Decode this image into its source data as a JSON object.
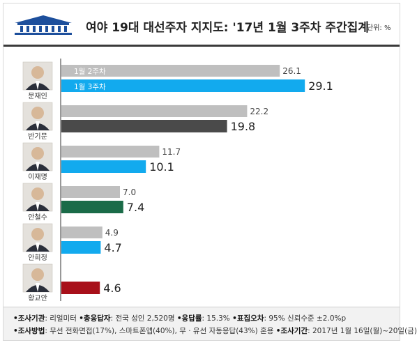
{
  "header": {
    "title": "여야 19대 대선주자 지지도: '17년 1월 3주차 주간집계",
    "unit": "단위: %"
  },
  "colors": {
    "prev_bar": "#bfbfbf",
    "axis": "#555555"
  },
  "chart_data": {
    "type": "bar",
    "orientation": "horizontal",
    "series": [
      {
        "name": "1월 2주차",
        "values": [
          26.1,
          22.2,
          11.7,
          7.0,
          4.9,
          null
        ]
      },
      {
        "name": "1월 3주차",
        "values": [
          29.1,
          19.8,
          10.1,
          7.4,
          4.7,
          4.6
        ]
      }
    ],
    "legend_labels": [
      "1월 2주차",
      "1월 3주차"
    ],
    "categories": [
      "문재인",
      "반기문",
      "이재명",
      "안철수",
      "안희정",
      "황교안"
    ],
    "value_labels": {
      "prev": [
        "26.1",
        "22.2",
        "11.7",
        "7.0",
        "4.9",
        ""
      ],
      "curr": [
        "29.1",
        "19.8",
        "10.1",
        "7.4",
        "4.7",
        "4.6"
      ]
    },
    "current_colors": [
      "#12aaee",
      "#4a4a4a",
      "#12aaee",
      "#1a6b48",
      "#12aaee",
      "#a8101a"
    ],
    "xlim": [
      0,
      35
    ],
    "grid": false
  },
  "footer": {
    "line1": [
      {
        "key": "•조사기관",
        "text": ": 리얼미터"
      },
      {
        "key": " •총응답자",
        "text": ": 전국 성인 2,520명"
      },
      {
        "key": " •응답률",
        "text": ": 15.3%"
      },
      {
        "key": " •표집오차",
        "text": ": 95% 신뢰수준 ±2.0%p"
      }
    ],
    "line2": [
      {
        "key": "•조사방법",
        "text": ": 무선 전화면접(17%), 스마트폰앱(40%), 무 · 유선 자동응답(43%) 혼용"
      },
      {
        "key": " •조사기간",
        "text": ": 2017년 1월 16일(월)~20일(금)"
      }
    ]
  }
}
